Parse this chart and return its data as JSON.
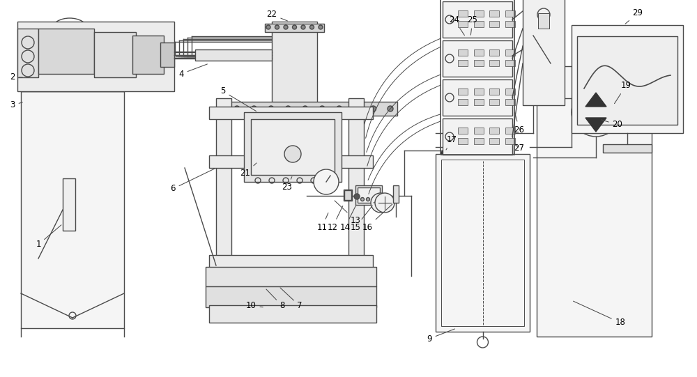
{
  "bg_color": "#ffffff",
  "line_color": "#4a4a4a",
  "line_width": 1.0,
  "label_fontsize": 8.5,
  "fig_w": 10.0,
  "fig_h": 5.41,
  "dpi": 100
}
